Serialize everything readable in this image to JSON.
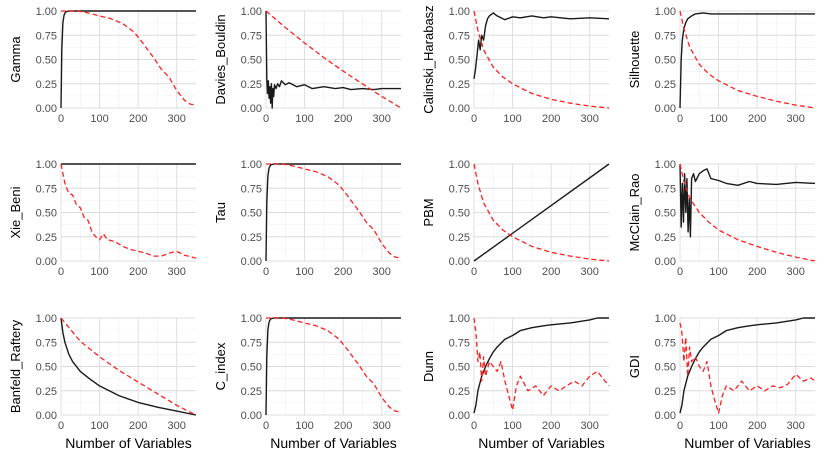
{
  "figure": {
    "x_axis_label": "Number of Variables",
    "y_ticks": [
      "0.00",
      "0.25",
      "0.50",
      "0.75",
      "1.00"
    ],
    "x_ticks": [
      "0",
      "100",
      "200",
      "300"
    ],
    "solid_color": "#1a1a1a",
    "dashed_color": "#ff2020"
  },
  "chart_data": [
    {
      "type": "line",
      "ylabel": "Gamma",
      "xlim": [
        0,
        350
      ],
      "ylim": [
        0,
        1
      ],
      "xlabel": "",
      "series": [
        {
          "name": "solid",
          "x": [
            0,
            2,
            5,
            8,
            12,
            20,
            40,
            350
          ],
          "values": [
            0,
            0.6,
            0.88,
            0.96,
            0.99,
            1,
            1,
            1
          ]
        },
        {
          "name": "dashed",
          "x": [
            0,
            20,
            40,
            60,
            80,
            100,
            130,
            160,
            190,
            210,
            240,
            260,
            280,
            300,
            320,
            335,
            350
          ],
          "values": [
            1,
            1,
            1,
            0.99,
            0.97,
            0.95,
            0.92,
            0.87,
            0.78,
            0.68,
            0.52,
            0.4,
            0.32,
            0.18,
            0.08,
            0.04,
            0.03
          ]
        }
      ]
    },
    {
      "type": "line",
      "ylabel": "Davies_Bouldin",
      "xlim": [
        0,
        350
      ],
      "ylim": [
        0,
        1
      ],
      "xlabel": "",
      "series": [
        {
          "name": "solid",
          "x": [
            0,
            2,
            4,
            6,
            8,
            10,
            12,
            14,
            16,
            18,
            20,
            22,
            26,
            30,
            35,
            40,
            50,
            60,
            80,
            100,
            120,
            150,
            180,
            200,
            220,
            250,
            280,
            300,
            320,
            350
          ],
          "values": [
            1,
            0.3,
            0.15,
            0.28,
            0.1,
            0.22,
            0.05,
            0.25,
            0.0,
            0.2,
            0.12,
            0.24,
            0.2,
            0.25,
            0.22,
            0.28,
            0.24,
            0.26,
            0.22,
            0.24,
            0.2,
            0.22,
            0.2,
            0.21,
            0.19,
            0.2,
            0.19,
            0.2,
            0.2,
            0.2
          ]
        },
        {
          "name": "dashed",
          "x": [
            0,
            50,
            100,
            150,
            200,
            250,
            300,
            350
          ],
          "values": [
            1,
            0.83,
            0.67,
            0.52,
            0.38,
            0.25,
            0.12,
            0.0
          ]
        }
      ]
    },
    {
      "type": "line",
      "ylabel": "Calinski_Harabasz",
      "xlim": [
        0,
        350
      ],
      "ylim": [
        0,
        1
      ],
      "xlabel": "",
      "series": [
        {
          "name": "solid",
          "x": [
            0,
            4,
            8,
            12,
            16,
            20,
            25,
            30,
            35,
            40,
            50,
            60,
            70,
            80,
            100,
            120,
            150,
            180,
            200,
            250,
            300,
            350
          ],
          "values": [
            0.3,
            0.4,
            0.55,
            0.7,
            0.6,
            0.75,
            0.7,
            0.85,
            0.92,
            0.95,
            0.98,
            0.95,
            0.93,
            0.91,
            0.94,
            0.93,
            0.95,
            0.93,
            0.94,
            0.92,
            0.93,
            0.92
          ]
        },
        {
          "name": "dashed",
          "x": [
            0,
            10,
            25,
            50,
            75,
            100,
            150,
            200,
            250,
            300,
            350
          ],
          "values": [
            1,
            0.8,
            0.6,
            0.42,
            0.32,
            0.25,
            0.15,
            0.09,
            0.05,
            0.02,
            0.0
          ]
        }
      ]
    },
    {
      "type": "line",
      "ylabel": "Silhouette",
      "xlim": [
        0,
        350
      ],
      "ylim": [
        0,
        1
      ],
      "xlabel": "",
      "series": [
        {
          "name": "solid",
          "x": [
            0,
            3,
            6,
            10,
            15,
            20,
            30,
            40,
            60,
            80,
            100,
            150,
            200,
            250,
            300,
            350
          ],
          "values": [
            0.0,
            0.5,
            0.7,
            0.82,
            0.88,
            0.92,
            0.95,
            0.97,
            0.98,
            0.97,
            0.97,
            0.97,
            0.97,
            0.97,
            0.97,
            0.97
          ]
        },
        {
          "name": "dashed",
          "x": [
            0,
            10,
            25,
            50,
            75,
            100,
            150,
            200,
            250,
            300,
            350
          ],
          "values": [
            1,
            0.82,
            0.63,
            0.45,
            0.35,
            0.28,
            0.18,
            0.12,
            0.07,
            0.03,
            0.0
          ]
        }
      ]
    },
    {
      "type": "line",
      "ylabel": "Xie_Beni",
      "xlim": [
        0,
        350
      ],
      "ylim": [
        0,
        1
      ],
      "xlabel": "",
      "series": [
        {
          "name": "solid",
          "x": [
            0,
            350
          ],
          "values": [
            1,
            1
          ]
        },
        {
          "name": "dashed",
          "x": [
            0,
            10,
            20,
            30,
            40,
            50,
            60,
            70,
            80,
            90,
            100,
            110,
            120,
            140,
            160,
            180,
            200,
            220,
            240,
            260,
            280,
            300,
            320,
            340,
            350
          ],
          "values": [
            1,
            0.8,
            0.7,
            0.68,
            0.58,
            0.55,
            0.45,
            0.42,
            0.3,
            0.25,
            0.22,
            0.28,
            0.22,
            0.2,
            0.15,
            0.12,
            0.1,
            0.08,
            0.05,
            0.05,
            0.08,
            0.1,
            0.06,
            0.04,
            0.03
          ]
        }
      ]
    },
    {
      "type": "line",
      "ylabel": "Tau",
      "xlim": [
        0,
        350
      ],
      "ylim": [
        0,
        1
      ],
      "xlabel": "",
      "series": [
        {
          "name": "solid",
          "x": [
            0,
            2,
            5,
            8,
            12,
            20,
            40,
            350
          ],
          "values": [
            0,
            0.6,
            0.88,
            0.96,
            0.99,
            1,
            1,
            1
          ]
        },
        {
          "name": "dashed",
          "x": [
            0,
            20,
            40,
            60,
            80,
            100,
            130,
            160,
            190,
            210,
            240,
            260,
            280,
            300,
            320,
            335,
            350
          ],
          "values": [
            1,
            1,
            1,
            0.99,
            0.97,
            0.95,
            0.92,
            0.87,
            0.78,
            0.68,
            0.52,
            0.4,
            0.32,
            0.18,
            0.08,
            0.04,
            0.03
          ]
        }
      ]
    },
    {
      "type": "line",
      "ylabel": "PBM",
      "xlim": [
        0,
        350
      ],
      "ylim": [
        0,
        1
      ],
      "xlabel": "",
      "series": [
        {
          "name": "solid",
          "x": [
            0,
            350
          ],
          "values": [
            0,
            1
          ]
        },
        {
          "name": "dashed",
          "x": [
            0,
            10,
            25,
            50,
            75,
            100,
            150,
            200,
            250,
            300,
            350
          ],
          "values": [
            1,
            0.8,
            0.6,
            0.42,
            0.32,
            0.25,
            0.15,
            0.09,
            0.05,
            0.02,
            0.0
          ]
        }
      ]
    },
    {
      "type": "line",
      "ylabel": "McClain_Rao",
      "xlim": [
        0,
        350
      ],
      "ylim": [
        0,
        1
      ],
      "xlabel": "",
      "series": [
        {
          "name": "solid",
          "x": [
            0,
            3,
            6,
            9,
            12,
            15,
            18,
            21,
            24,
            27,
            30,
            35,
            40,
            50,
            60,
            70,
            80,
            100,
            120,
            150,
            180,
            200,
            250,
            300,
            350
          ],
          "values": [
            1,
            0.35,
            0.8,
            0.4,
            0.9,
            0.5,
            0.85,
            0.3,
            0.65,
            0.25,
            0.85,
            0.9,
            0.82,
            0.9,
            0.93,
            0.95,
            0.85,
            0.83,
            0.8,
            0.78,
            0.82,
            0.8,
            0.79,
            0.81,
            0.8
          ]
        },
        {
          "name": "dashed",
          "x": [
            0,
            10,
            25,
            50,
            75,
            100,
            150,
            200,
            250,
            300,
            350
          ],
          "values": [
            1,
            0.82,
            0.65,
            0.5,
            0.4,
            0.32,
            0.22,
            0.15,
            0.09,
            0.04,
            0.0
          ]
        }
      ]
    },
    {
      "type": "line",
      "ylabel": "Banfeld_Raftery",
      "xlim": [
        0,
        350
      ],
      "ylim": [
        0,
        1
      ],
      "xlabel": "Number of Variables",
      "series": [
        {
          "name": "solid",
          "x": [
            0,
            5,
            10,
            20,
            30,
            50,
            75,
            100,
            150,
            200,
            250,
            300,
            350
          ],
          "values": [
            1,
            0.85,
            0.75,
            0.63,
            0.55,
            0.45,
            0.37,
            0.3,
            0.2,
            0.13,
            0.08,
            0.04,
            0.0
          ]
        },
        {
          "name": "dashed",
          "x": [
            0,
            50,
            100,
            150,
            200,
            250,
            300,
            350
          ],
          "values": [
            1,
            0.76,
            0.6,
            0.46,
            0.34,
            0.22,
            0.1,
            0.0
          ]
        }
      ]
    },
    {
      "type": "line",
      "ylabel": "C_index",
      "xlim": [
        0,
        350
      ],
      "ylim": [
        0,
        1
      ],
      "xlabel": "Number of Variables",
      "series": [
        {
          "name": "solid",
          "x": [
            0,
            2,
            5,
            8,
            12,
            20,
            40,
            350
          ],
          "values": [
            0,
            0.6,
            0.88,
            0.96,
            0.99,
            1,
            1,
            1
          ]
        },
        {
          "name": "dashed",
          "x": [
            0,
            20,
            40,
            60,
            80,
            100,
            130,
            160,
            190,
            210,
            240,
            260,
            280,
            300,
            320,
            335,
            350
          ],
          "values": [
            1,
            1,
            1,
            0.99,
            0.97,
            0.95,
            0.92,
            0.87,
            0.78,
            0.68,
            0.52,
            0.4,
            0.32,
            0.18,
            0.08,
            0.04,
            0.03
          ]
        }
      ]
    },
    {
      "type": "line",
      "ylabel": "Dunn",
      "xlim": [
        0,
        350
      ],
      "ylim": [
        0,
        1
      ],
      "xlabel": "Number of Variables",
      "series": [
        {
          "name": "solid",
          "x": [
            0,
            5,
            10,
            20,
            30,
            40,
            50,
            60,
            80,
            100,
            120,
            150,
            180,
            200,
            250,
            300,
            320,
            350
          ],
          "values": [
            0.02,
            0.1,
            0.25,
            0.4,
            0.5,
            0.58,
            0.65,
            0.7,
            0.78,
            0.82,
            0.87,
            0.9,
            0.92,
            0.93,
            0.95,
            0.98,
            1,
            1
          ]
        },
        {
          "name": "dashed",
          "x": [
            0,
            5,
            10,
            15,
            20,
            25,
            30,
            40,
            50,
            60,
            70,
            80,
            90,
            100,
            110,
            120,
            140,
            160,
            180,
            200,
            220,
            240,
            260,
            280,
            300,
            320,
            340,
            350
          ],
          "values": [
            1,
            0.85,
            0.55,
            0.65,
            0.35,
            0.6,
            0.4,
            0.55,
            0.5,
            0.45,
            0.55,
            0.35,
            0.2,
            0.05,
            0.3,
            0.4,
            0.25,
            0.3,
            0.2,
            0.3,
            0.25,
            0.3,
            0.35,
            0.3,
            0.4,
            0.45,
            0.35,
            0.3
          ]
        }
      ]
    },
    {
      "type": "line",
      "ylabel": "GDI",
      "xlim": [
        0,
        350
      ],
      "ylim": [
        0,
        1
      ],
      "xlabel": "Number of Variables",
      "series": [
        {
          "name": "solid",
          "x": [
            0,
            5,
            10,
            20,
            30,
            40,
            50,
            60,
            80,
            100,
            120,
            150,
            180,
            200,
            250,
            300,
            320,
            350
          ],
          "values": [
            0.02,
            0.1,
            0.25,
            0.4,
            0.5,
            0.58,
            0.65,
            0.7,
            0.78,
            0.82,
            0.87,
            0.9,
            0.92,
            0.93,
            0.95,
            0.98,
            1,
            1
          ]
        },
        {
          "name": "dashed",
          "x": [
            0,
            5,
            10,
            15,
            20,
            25,
            30,
            40,
            50,
            60,
            70,
            80,
            90,
            100,
            110,
            120,
            140,
            160,
            180,
            200,
            220,
            240,
            260,
            280,
            300,
            320,
            340,
            350
          ],
          "values": [
            0.95,
            0.85,
            0.55,
            0.8,
            0.4,
            0.7,
            0.55,
            0.6,
            0.5,
            0.45,
            0.55,
            0.3,
            0.15,
            0.02,
            0.2,
            0.3,
            0.25,
            0.35,
            0.25,
            0.3,
            0.25,
            0.3,
            0.28,
            0.32,
            0.42,
            0.35,
            0.38,
            0.35
          ]
        }
      ]
    }
  ]
}
